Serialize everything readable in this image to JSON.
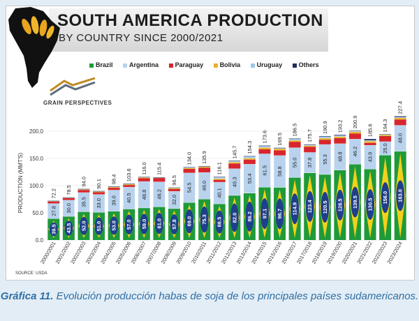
{
  "header": {
    "title": "SOUTH AMERICA PRODUCTION",
    "subtitle": "BY COUNTRY SINCE 2000/2021",
    "brand": "GRAIN PERSPECTIVES"
  },
  "source": "SOURCE: USDA",
  "caption": {
    "label": "Gráfica 11.",
    "text": "Evolución producción habas de soja de los principales países sudamericanos."
  },
  "colors": {
    "brazil": "#1f9a3a",
    "argentina": "#b9d3ee",
    "paraguay": "#d7262d",
    "bolivia": "#e6b22b",
    "uruguay": "#9ec7ea",
    "others": "#1f2d5c",
    "caption": "#2f6fa4",
    "background": "#e3edf6"
  },
  "chart_data": {
    "type": "bar",
    "stacked": true,
    "ylabel": "PRODUCTION (MMT'S)",
    "ylim": [
      0,
      250
    ],
    "yticks": [
      "0.0",
      "50.0",
      "100.0",
      "150.0",
      "200.0"
    ],
    "categories": [
      "2000/2001",
      "2001/2002",
      "2002/2003",
      "2003/2004",
      "2004/2005",
      "2005/2006",
      "2006/2007",
      "2007/2008",
      "2008/2009",
      "2009/2010",
      "2010/2011",
      "2011/2012",
      "2012/2013",
      "2013/2014",
      "2014/2015",
      "2015/2016",
      "2016/2017",
      "2017/2018",
      "2018/2019",
      "2019/2020",
      "2020/2021",
      "2021/2022",
      "2022/2023",
      "2023/2024"
    ],
    "totals": [
      72.2,
      78.5,
      94.0,
      90.1,
      98.4,
      103.6,
      116.0,
      115.4,
      96.5,
      134.0,
      135.9,
      116.1,
      145.7,
      154.3,
      173.6,
      169.5,
      186.5,
      175.7,
      190.9,
      193.2,
      200.9,
      185.6,
      194.3,
      227.4
    ],
    "series": [
      {
        "name": "Brazil",
        "values": [
          39.5,
          43.5,
          52.0,
          51.0,
          53.0,
          57.0,
          59.0,
          61.0,
          57.8,
          69.0,
          75.3,
          66.5,
          82.0,
          86.2,
          97.1,
          96.7,
          114.9,
          123.4,
          120.5,
          128.5,
          139.5,
          130.5,
          156.0,
          163.0
        ]
      },
      {
        "name": "Argentina",
        "values": [
          27.8,
          30.0,
          35.5,
          33.0,
          39.0,
          40.5,
          48.8,
          46.2,
          32.0,
          54.5,
          49.0,
          40.1,
          49.3,
          53.4,
          61.5,
          58.8,
          55.0,
          37.8,
          55.3,
          48.8,
          46.2,
          43.9,
          25.0,
          48.0
        ]
      },
      {
        "name": "Paraguay",
        "values": [
          3.5,
          3.5,
          4.5,
          3.9,
          4.0,
          3.6,
          5.9,
          6.8,
          3.8,
          7.2,
          8.4,
          4.1,
          9.4,
          8.2,
          8.2,
          9.2,
          10.7,
          10.3,
          8.5,
          10.0,
          9.9,
          4.2,
          10.0,
          10.5
        ]
      },
      {
        "name": "Bolivia",
        "values": [
          1.2,
          1.1,
          1.6,
          1.6,
          1.9,
          1.7,
          1.6,
          1.0,
          1.8,
          1.8,
          2.3,
          2.1,
          2.5,
          2.6,
          3.2,
          3.0,
          2.7,
          2.0,
          2.9,
          2.8,
          3.3,
          3.3,
          2.4,
          3.0
        ]
      },
      {
        "name": "Uruguay",
        "values": [
          0.1,
          0.2,
          0.2,
          0.4,
          0.3,
          0.6,
          0.5,
          0.2,
          0.9,
          1.2,
          0.4,
          2.5,
          2.2,
          3.3,
          3.0,
          0.9,
          2.7,
          1.3,
          2.8,
          1.9,
          1.2,
          1.2,
          0.5,
          1.4
        ]
      },
      {
        "name": "Others",
        "values": [
          0.1,
          0.2,
          0.2,
          0.2,
          0.2,
          0.2,
          0.2,
          0.2,
          0.2,
          0.3,
          0.5,
          0.8,
          0.3,
          0.6,
          0.6,
          0.9,
          0.5,
          0.9,
          0.9,
          1.2,
          0.8,
          2.5,
          0.4,
          1.5
        ]
      }
    ],
    "legend_position": "top"
  }
}
